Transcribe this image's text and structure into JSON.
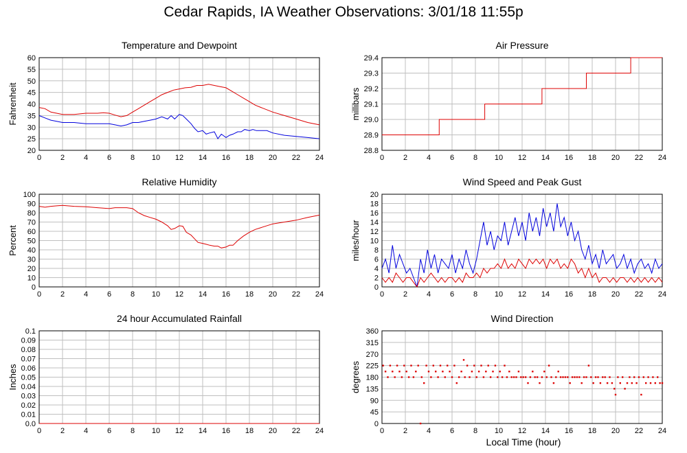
{
  "page": {
    "title": "Cedar Rapids, IA Weather Observations: 3/01/18 11:55p",
    "xlabel": "Local Time (hour)"
  },
  "colors": {
    "red": "#dd0000",
    "blue": "#0000dd",
    "grid": "#bfbfbf"
  },
  "chart_data": [
    {
      "id": "temp",
      "type": "line",
      "title": "Temperature and Dewpoint",
      "xlabel": "",
      "ylabel": "Fahrenheit",
      "xlim": [
        0,
        24
      ],
      "ylim": [
        20,
        60
      ],
      "xticks": [
        "0",
        "2",
        "4",
        "6",
        "8",
        "10",
        "12",
        "14",
        "16",
        "18",
        "20",
        "22",
        "24"
      ],
      "yticks": [
        "20",
        "25",
        "30",
        "35",
        "40",
        "45",
        "50",
        "55",
        "60"
      ],
      "grid": true,
      "series": [
        {
          "color": "red",
          "x": [
            0,
            0.5,
            1,
            1.5,
            2,
            3,
            4,
            5,
            5.5,
            6,
            6.5,
            7,
            7.5,
            8,
            8.5,
            9,
            9.5,
            10,
            10.5,
            11,
            11.5,
            12,
            12.5,
            13,
            13.5,
            14,
            14.5,
            15,
            15.5,
            16,
            16.5,
            17,
            17.5,
            18,
            18.5,
            19,
            20,
            21,
            22,
            23,
            24
          ],
          "y": [
            38.5,
            38,
            36.5,
            36,
            35.5,
            35.5,
            36,
            36,
            36.2,
            36,
            35.2,
            34.5,
            35,
            36.5,
            38,
            39.5,
            41,
            42.5,
            44,
            45,
            46,
            46.5,
            47,
            47.2,
            48,
            48,
            48.5,
            48,
            47.5,
            47,
            45.5,
            44,
            42.5,
            41,
            39.5,
            38.5,
            36.5,
            35,
            33.5,
            32,
            31
          ]
        },
        {
          "color": "blue",
          "x": [
            0,
            0.5,
            1,
            1.5,
            2,
            3,
            4,
            5,
            6,
            6.5,
            7,
            7.5,
            8,
            8.5,
            9,
            9.5,
            10,
            10.5,
            11,
            11.3,
            11.6,
            12,
            12.3,
            12.6,
            13,
            13.3,
            13.6,
            14,
            14.3,
            14.6,
            15,
            15.3,
            15.6,
            16,
            16.3,
            16.6,
            17,
            17.3,
            17.6,
            18,
            18.3,
            18.6,
            19,
            19.5,
            20,
            21,
            22,
            23,
            24
          ],
          "y": [
            35,
            34,
            33,
            32.5,
            32,
            32,
            31.5,
            31.5,
            31.5,
            31,
            30.5,
            31,
            32,
            32,
            32.5,
            33,
            33.5,
            34.5,
            33.5,
            35,
            33.5,
            35.5,
            35,
            33.5,
            31.5,
            29.5,
            28,
            28.5,
            27,
            27.5,
            28,
            25,
            27,
            25.5,
            26.5,
            27,
            28,
            28,
            29,
            28.5,
            29,
            28.5,
            28.5,
            28.5,
            27.5,
            26.5,
            26,
            25.5,
            25
          ]
        }
      ]
    },
    {
      "id": "pressure",
      "type": "line",
      "title": "Air Pressure",
      "xlabel": "",
      "ylabel": "millibars",
      "xlim": [
        0,
        24
      ],
      "ylim": [
        28.8,
        29.4
      ],
      "xticks": [
        "0",
        "2",
        "4",
        "6",
        "8",
        "10",
        "12",
        "14",
        "16",
        "18",
        "20",
        "22",
        "24"
      ],
      "yticks": [
        "28.8",
        "28.9",
        "29.0",
        "29.1",
        "29.2",
        "29.3",
        "29.4"
      ],
      "grid": true,
      "series": [
        {
          "color": "red",
          "x": [
            0,
            4.9,
            4.9,
            8.8,
            8.8,
            13.7,
            13.7,
            17.5,
            17.5,
            21.3,
            21.3,
            24
          ],
          "y": [
            28.9,
            28.9,
            29.0,
            29.0,
            29.1,
            29.1,
            29.2,
            29.2,
            29.3,
            29.3,
            29.4,
            29.4
          ]
        }
      ]
    },
    {
      "id": "humidity",
      "type": "line",
      "title": "Relative Humidity",
      "xlabel": "",
      "ylabel": "Percent",
      "xlim": [
        0,
        24
      ],
      "ylim": [
        0,
        100
      ],
      "xticks": [
        "0",
        "2",
        "4",
        "6",
        "8",
        "10",
        "12",
        "14",
        "16",
        "18",
        "20",
        "22",
        "24"
      ],
      "yticks": [
        "0",
        "10",
        "20",
        "30",
        "40",
        "50",
        "60",
        "70",
        "80",
        "90",
        "100"
      ],
      "grid": true,
      "series": [
        {
          "color": "red",
          "x": [
            0,
            0.5,
            1,
            1.5,
            2,
            3,
            4,
            5,
            6,
            6.5,
            7,
            7.5,
            8,
            8.5,
            9,
            9.5,
            10,
            10.5,
            11,
            11.3,
            11.6,
            12,
            12.3,
            12.6,
            13,
            13.3,
            13.6,
            14,
            14.3,
            14.6,
            15,
            15.3,
            15.6,
            16,
            16.3,
            16.6,
            17,
            17.5,
            18,
            18.5,
            19,
            20,
            21,
            22,
            23,
            24
          ],
          "y": [
            87,
            86,
            87,
            87.5,
            88,
            87,
            86.5,
            85.5,
            84.5,
            85.5,
            85.5,
            85.5,
            84.5,
            80,
            77,
            75,
            73,
            70,
            66,
            62,
            63,
            66,
            65.5,
            59,
            56,
            52,
            48,
            47,
            46,
            45,
            44,
            44,
            42,
            43,
            45,
            45,
            50,
            55,
            59,
            62,
            64,
            68,
            70,
            72,
            75,
            77.5
          ]
        }
      ]
    },
    {
      "id": "wind",
      "type": "line",
      "title": "Wind Speed and Peak Gust",
      "xlabel": "",
      "ylabel": "miles/hour",
      "xlim": [
        0,
        24
      ],
      "ylim": [
        0,
        20
      ],
      "xticks": [
        "0",
        "2",
        "4",
        "6",
        "8",
        "10",
        "12",
        "14",
        "16",
        "18",
        "20",
        "22",
        "24"
      ],
      "yticks": [
        "0",
        "2",
        "4",
        "6",
        "8",
        "10",
        "12",
        "14",
        "16",
        "18",
        "20"
      ],
      "grid": true,
      "series": [
        {
          "color": "blue",
          "x": [
            0,
            0.3,
            0.6,
            0.9,
            1.2,
            1.5,
            1.8,
            2.1,
            2.4,
            2.7,
            3,
            3.3,
            3.6,
            3.9,
            4.2,
            4.5,
            4.8,
            5.1,
            5.4,
            5.7,
            6,
            6.3,
            6.6,
            6.9,
            7.2,
            7.5,
            7.8,
            8.1,
            8.4,
            8.7,
            9,
            9.3,
            9.6,
            9.9,
            10.2,
            10.5,
            10.8,
            11.1,
            11.4,
            11.7,
            12,
            12.3,
            12.6,
            12.9,
            13.2,
            13.5,
            13.8,
            14.1,
            14.4,
            14.7,
            15,
            15.3,
            15.6,
            15.9,
            16.2,
            16.5,
            16.8,
            17.1,
            17.4,
            17.7,
            18,
            18.3,
            18.6,
            18.9,
            19.2,
            19.5,
            19.8,
            20.1,
            20.4,
            20.7,
            21,
            21.3,
            21.6,
            21.9,
            22.2,
            22.5,
            22.8,
            23.1,
            23.4,
            23.7,
            24
          ],
          "y": [
            4,
            6,
            3,
            9,
            4,
            7,
            5,
            3,
            4,
            2,
            0,
            6,
            3,
            8,
            4,
            7,
            3,
            6,
            5,
            4,
            7,
            3,
            6,
            4,
            8,
            5,
            3,
            6,
            10,
            14,
            9,
            12,
            8,
            11,
            10,
            14,
            9,
            12,
            15,
            11,
            14,
            10,
            16,
            12,
            15,
            11,
            17,
            13,
            16,
            12,
            18,
            13,
            15,
            11,
            14,
            10,
            12,
            8,
            6,
            9,
            5,
            7,
            4,
            8,
            5,
            6,
            7,
            4,
            5,
            7,
            4,
            6,
            3,
            5,
            6,
            4,
            5,
            3,
            6,
            4,
            5
          ]
        },
        {
          "color": "red",
          "x": [
            0,
            0.3,
            0.6,
            0.9,
            1.2,
            1.5,
            1.8,
            2.1,
            2.4,
            2.7,
            3,
            3.3,
            3.6,
            3.9,
            4.2,
            4.5,
            4.8,
            5.1,
            5.4,
            5.7,
            6,
            6.3,
            6.6,
            6.9,
            7.2,
            7.5,
            7.8,
            8.1,
            8.4,
            8.7,
            9,
            9.3,
            9.6,
            9.9,
            10.2,
            10.5,
            10.8,
            11.1,
            11.4,
            11.7,
            12,
            12.3,
            12.6,
            12.9,
            13.2,
            13.5,
            13.8,
            14.1,
            14.4,
            14.7,
            15,
            15.3,
            15.6,
            15.9,
            16.2,
            16.5,
            16.8,
            17.1,
            17.4,
            17.7,
            18,
            18.3,
            18.6,
            18.9,
            19.2,
            19.5,
            19.8,
            20.1,
            20.4,
            20.7,
            21,
            21.3,
            21.6,
            21.9,
            22.2,
            22.5,
            22.8,
            23.1,
            23.4,
            23.7,
            24
          ],
          "y": [
            2,
            1,
            2,
            1,
            3,
            2,
            1,
            2,
            2,
            1,
            0,
            2,
            1,
            2,
            3,
            2,
            1,
            2,
            1,
            2,
            2,
            1,
            2,
            1,
            3,
            2,
            2,
            3,
            2,
            4,
            3,
            4,
            4,
            5,
            4,
            6,
            4,
            5,
            4,
            6,
            5,
            4,
            6,
            5,
            6,
            5,
            6,
            4,
            6,
            5,
            6,
            4,
            5,
            4,
            6,
            5,
            3,
            4,
            2,
            4,
            2,
            3,
            1,
            2,
            2,
            1,
            2,
            1,
            2,
            2,
            1,
            2,
            1,
            2,
            1,
            2,
            1,
            2,
            1,
            2,
            1
          ]
        }
      ]
    },
    {
      "id": "rain",
      "type": "line",
      "title": "24 hour Accumulated Rainfall",
      "xlabel": "",
      "ylabel": "Inches",
      "xlim": [
        0,
        24
      ],
      "ylim": [
        0,
        0.1
      ],
      "xticks": [
        "0",
        "2",
        "4",
        "6",
        "8",
        "10",
        "12",
        "14",
        "16",
        "18",
        "20",
        "22",
        "24"
      ],
      "yticks": [
        "0.0",
        "0.01",
        "0.02",
        "0.03",
        "0.04",
        "0.05",
        "0.06",
        "0.07",
        "0.08",
        "0.09",
        "0.1"
      ],
      "grid": true,
      "series": [
        {
          "color": "red",
          "x": [
            0,
            24
          ],
          "y": [
            0,
            0
          ]
        }
      ]
    },
    {
      "id": "direction",
      "type": "scatter",
      "title": "Wind Direction",
      "xlabel": "Local Time (hour)",
      "ylabel": "degrees",
      "xlim": [
        0,
        24
      ],
      "ylim": [
        0,
        360
      ],
      "xticks": [
        "0",
        "2",
        "4",
        "6",
        "8",
        "10",
        "12",
        "14",
        "16",
        "18",
        "20",
        "22",
        "24"
      ],
      "yticks": [
        "0",
        "45",
        "90",
        "135",
        "180",
        "225",
        "270",
        "315",
        "360"
      ],
      "grid": true,
      "series": [
        {
          "color": "red",
          "x": [
            0.1,
            0.3,
            0.5,
            0.7,
            0.9,
            1.1,
            1.3,
            1.5,
            1.7,
            1.9,
            2.1,
            2.3,
            2.5,
            2.7,
            2.9,
            3.1,
            3.3,
            3.4,
            3.6,
            3.8,
            4.0,
            4.2,
            4.4,
            4.6,
            4.8,
            5.0,
            5.2,
            5.4,
            5.6,
            5.8,
            6.0,
            6.2,
            6.4,
            6.6,
            6.8,
            7.0,
            7.1,
            7.3,
            7.5,
            7.7,
            7.9,
            8.1,
            8.3,
            8.5,
            8.7,
            8.9,
            9.1,
            9.3,
            9.5,
            9.7,
            9.9,
            10.1,
            10.3,
            10.5,
            10.7,
            10.9,
            11.1,
            11.3,
            11.5,
            11.7,
            11.9,
            12.1,
            12.3,
            12.5,
            12.7,
            12.9,
            13.1,
            13.3,
            13.5,
            13.7,
            13.9,
            14.1,
            14.3,
            14.5,
            14.7,
            14.9,
            15.1,
            15.3,
            15.5,
            15.7,
            15.9,
            16.1,
            16.3,
            16.5,
            16.7,
            16.9,
            17.1,
            17.3,
            17.5,
            17.7,
            17.9,
            18.1,
            18.3,
            18.5,
            18.7,
            18.9,
            19.1,
            19.3,
            19.5,
            19.7,
            19.9,
            20.0,
            20.2,
            20.4,
            20.6,
            20.8,
            21.0,
            21.2,
            21.4,
            21.6,
            21.8,
            22.0,
            22.2,
            22.4,
            22.6,
            22.8,
            23.0,
            23.2,
            23.4,
            23.6,
            23.8,
            24.0
          ],
          "y": [
            225,
            202,
            180,
            225,
            202,
            180,
            225,
            202,
            180,
            225,
            202,
            180,
            225,
            180,
            202,
            225,
            0,
            180,
            157,
            225,
            202,
            180,
            225,
            202,
            180,
            225,
            202,
            180,
            225,
            202,
            180,
            225,
            157,
            180,
            202,
            247,
            180,
            225,
            180,
            202,
            225,
            180,
            202,
            225,
            180,
            202,
            225,
            180,
            202,
            225,
            180,
            202,
            180,
            225,
            180,
            202,
            180,
            180,
            180,
            202,
            180,
            180,
            180,
            157,
            180,
            202,
            180,
            180,
            157,
            180,
            202,
            180,
            225,
            180,
            157,
            180,
            202,
            180,
            180,
            180,
            180,
            157,
            180,
            180,
            180,
            180,
            157,
            180,
            180,
            225,
            180,
            157,
            180,
            180,
            157,
            180,
            180,
            157,
            180,
            157,
            135,
            112,
            180,
            157,
            180,
            135,
            157,
            180,
            157,
            180,
            157,
            180,
            112,
            180,
            157,
            180,
            157,
            180,
            157,
            180,
            157,
            157
          ]
        }
      ]
    }
  ]
}
